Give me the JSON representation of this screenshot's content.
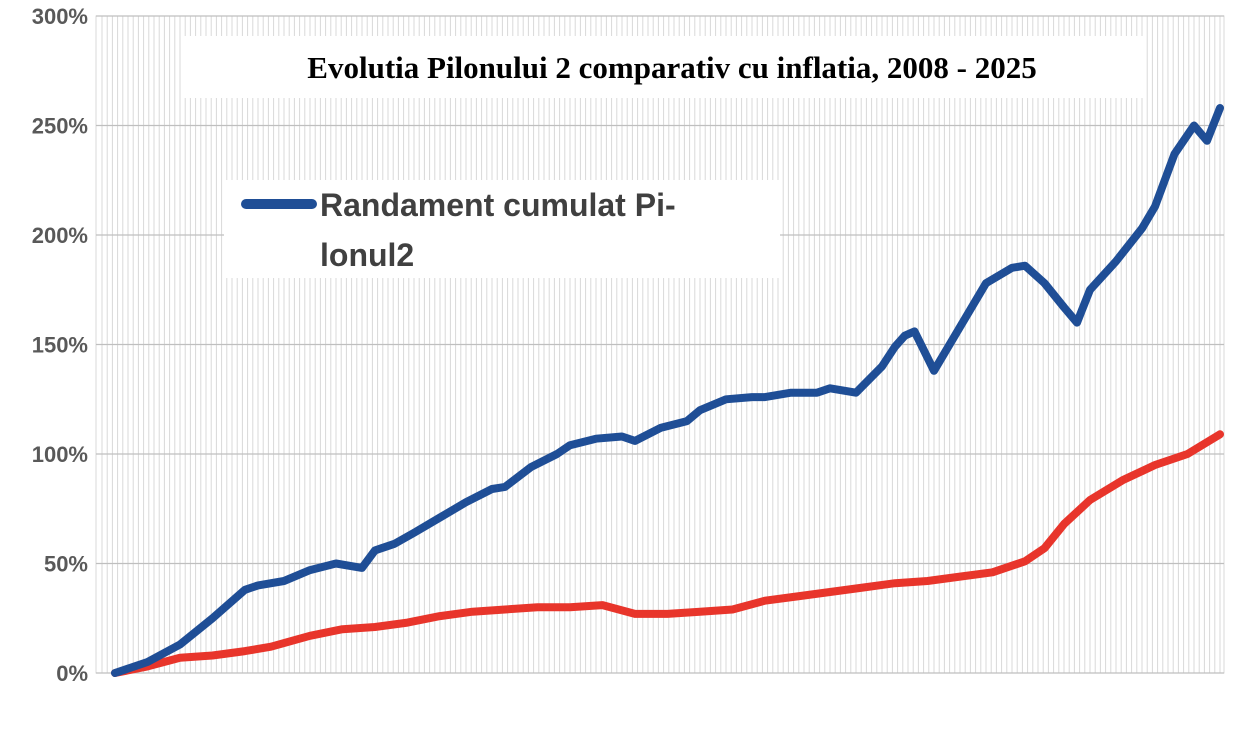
{
  "chart_data": {
    "type": "line",
    "title": "Evolutia Pilonului 2 comparativ cu inflatia, 2008 - 2025",
    "xlabel": "",
    "ylabel": "",
    "x_range": [
      2008,
      2025
    ],
    "ylim": [
      0,
      300
    ],
    "y_ticks": [
      0,
      50,
      100,
      150,
      200,
      250,
      300
    ],
    "y_tick_labels": [
      "0%",
      "50%",
      "100%",
      "150%",
      "200%",
      "250%",
      "300%"
    ],
    "grid": true,
    "legend": {
      "placement": "top-left",
      "entries": [
        "Randament cumulat Pilonul2"
      ],
      "display_lines": [
        "Randament cumulat Pi-",
        "lonul2"
      ]
    },
    "series": [
      {
        "name": "Randament cumulat Pilonul2",
        "color": "#1f4e96",
        "x": [
          2008.0,
          2008.5,
          2009.0,
          2009.5,
          2010.0,
          2010.2,
          2010.6,
          2011.0,
          2011.4,
          2011.8,
          2012.0,
          2012.3,
          2012.6,
          2013.0,
          2013.4,
          2013.8,
          2014.0,
          2014.4,
          2014.8,
          2015.0,
          2015.4,
          2015.8,
          2016.0,
          2016.4,
          2016.8,
          2017.0,
          2017.4,
          2017.8,
          2018.0,
          2018.4,
          2018.8,
          2019.0,
          2019.4,
          2019.8,
          2020.0,
          2020.15,
          2020.3,
          2020.6,
          2021.0,
          2021.4,
          2021.8,
          2022.0,
          2022.3,
          2022.6,
          2022.8,
          2023.0,
          2023.4,
          2023.8,
          2024.0,
          2024.3,
          2024.6,
          2024.8,
          2025.0
        ],
        "values": [
          0,
          5,
          13,
          25,
          38,
          40,
          42,
          47,
          50,
          48,
          56,
          59,
          64,
          71,
          78,
          84,
          85,
          94,
          100,
          104,
          107,
          108,
          106,
          112,
          115,
          120,
          125,
          126,
          126,
          128,
          128,
          130,
          128,
          140,
          149,
          154,
          156,
          138,
          158,
          178,
          185,
          186,
          178,
          167,
          160,
          175,
          188,
          203,
          213,
          237,
          250,
          243,
          258
        ]
      },
      {
        "name": "",
        "color": "#e8352b",
        "x": [
          2008.0,
          2008.5,
          2009.0,
          2009.5,
          2010.0,
          2010.4,
          2011.0,
          2011.5,
          2012.0,
          2012.5,
          2013.0,
          2013.5,
          2014.0,
          2014.5,
          2015.0,
          2015.5,
          2016.0,
          2016.5,
          2017.0,
          2017.5,
          2018.0,
          2018.5,
          2019.0,
          2019.5,
          2020.0,
          2020.5,
          2021.0,
          2021.5,
          2022.0,
          2022.3,
          2022.6,
          2023.0,
          2023.5,
          2024.0,
          2024.5,
          2025.0
        ],
        "values": [
          0,
          3,
          7,
          8,
          10,
          12,
          17,
          20,
          21,
          23,
          26,
          28,
          29,
          30,
          30,
          31,
          27,
          27,
          28,
          29,
          33,
          35,
          37,
          39,
          41,
          42,
          44,
          46,
          51,
          57,
          68,
          79,
          88,
          95,
          100,
          109
        ]
      }
    ]
  }
}
